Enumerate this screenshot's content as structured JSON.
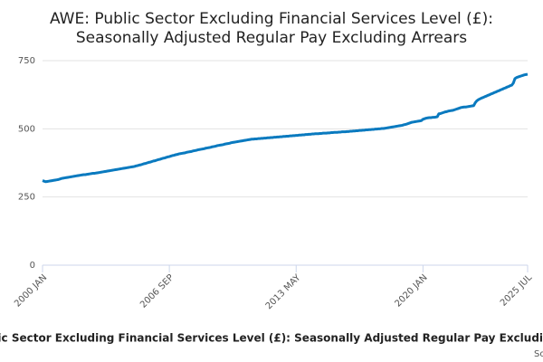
{
  "chart_data": {
    "type": "line",
    "title": [
      "AWE: Public Sector Excluding Financial Services Level (£):",
      "Seasonally Adjusted Regular Pay Excluding Arrears"
    ],
    "x_label": "AWE: Public Sector Excluding Financial Services Level (£): Seasonally Adjusted Regular Pay Excluding Arrears",
    "source": "Source:",
    "color": "#0a7abf",
    "grid": true,
    "ylim": [
      0,
      750
    ],
    "yticks": [
      0,
      250,
      500,
      750
    ],
    "categories": [
      "2000 JAN",
      null,
      null,
      null,
      null,
      null,
      null,
      null,
      null,
      null,
      null,
      null,
      null,
      null,
      null,
      null,
      null,
      null,
      null,
      null,
      null,
      null,
      null,
      null,
      null,
      null,
      null,
      null,
      null,
      null,
      null,
      null,
      null,
      null,
      null,
      null,
      null,
      null,
      null,
      null,
      null,
      null,
      null,
      null,
      null,
      null,
      null,
      null,
      null,
      null,
      null,
      null,
      null,
      null,
      null,
      null,
      null,
      null,
      null,
      null,
      null,
      null,
      null,
      null,
      null,
      null,
      null,
      null,
      null,
      null,
      null,
      null,
      null,
      null,
      null,
      null,
      null,
      null,
      null,
      null,
      "2006 SEP",
      null,
      null,
      null,
      null,
      null,
      null,
      null,
      null,
      null,
      null,
      null,
      null,
      null,
      null,
      null,
      null,
      null,
      null,
      null,
      null,
      null,
      null,
      null,
      null,
      null,
      null,
      null,
      null,
      null,
      null,
      null,
      null,
      null,
      null,
      null,
      null,
      null,
      null,
      null,
      null,
      null,
      null,
      null,
      null,
      null,
      null,
      null,
      null,
      null,
      null,
      null,
      null,
      null,
      null,
      null,
      null,
      null,
      null,
      null,
      null,
      null,
      null,
      null,
      null,
      null,
      null,
      null,
      null,
      null,
      null,
      null,
      null,
      null,
      null,
      null,
      null,
      null,
      null,
      null,
      "2013 MAY",
      null,
      null,
      null,
      null,
      null,
      null,
      null,
      null,
      null,
      null,
      null,
      null,
      null,
      null,
      null,
      null,
      null,
      null,
      null,
      null,
      null,
      null,
      null,
      null,
      null,
      null,
      null,
      null,
      null,
      null,
      null,
      null,
      null,
      null,
      null,
      null,
      null,
      null,
      null,
      null,
      null,
      null,
      null,
      null,
      null,
      null,
      null,
      null,
      null,
      null,
      null,
      null,
      null,
      null,
      null,
      null,
      null,
      null,
      null,
      null,
      null,
      null,
      null,
      null,
      null,
      null,
      null,
      null,
      null,
      null,
      null,
      null,
      null,
      null,
      null,
      null,
      null,
      null,
      null,
      "2020 JAN",
      null,
      null,
      null,
      null,
      null,
      null,
      null,
      null,
      null,
      null,
      null,
      null,
      null,
      null,
      null,
      null,
      null,
      null,
      null,
      null,
      null,
      null,
      null,
      null,
      null,
      null,
      null,
      null,
      null,
      null,
      null,
      null,
      null,
      null,
      null,
      null,
      null,
      null,
      null,
      null,
      null,
      null,
      null,
      null,
      null,
      null,
      null,
      null,
      null,
      null,
      null,
      null,
      null,
      null,
      null,
      null,
      null,
      null,
      null,
      null,
      null,
      null,
      null,
      null,
      null,
      "2025 JUL"
    ],
    "values": [
      310,
      308,
      306,
      307,
      308,
      309,
      310,
      311,
      312,
      313,
      314,
      316,
      318,
      319,
      320,
      321,
      322,
      323,
      324,
      325,
      326,
      327,
      328,
      329,
      330,
      331,
      332,
      332,
      333,
      334,
      335,
      336,
      337,
      337,
      338,
      339,
      340,
      341,
      342,
      343,
      344,
      345,
      346,
      347,
      348,
      349,
      350,
      351,
      352,
      353,
      354,
      355,
      356,
      357,
      358,
      359,
      360,
      361,
      362,
      364,
      365,
      367,
      368,
      370,
      372,
      373,
      375,
      377,
      378,
      380,
      382,
      383,
      385,
      387,
      388,
      390,
      392,
      393,
      395,
      397,
      398,
      400,
      402,
      403,
      405,
      406,
      408,
      409,
      410,
      411,
      412,
      414,
      415,
      416,
      417,
      419,
      420,
      421,
      423,
      424,
      425,
      426,
      427,
      429,
      430,
      431,
      432,
      434,
      435,
      436,
      438,
      439,
      440,
      441,
      442,
      444,
      445,
      446,
      447,
      449,
      450,
      451,
      452,
      453,
      454,
      455,
      456,
      457,
      458,
      459,
      460,
      461,
      462,
      462,
      463,
      463,
      464,
      464,
      465,
      465,
      466,
      466,
      467,
      467,
      468,
      468,
      469,
      469,
      470,
      470,
      471,
      471,
      472,
      472,
      473,
      473,
      474,
      474,
      475,
      475,
      476,
      476,
      477,
      477,
      478,
      478,
      479,
      479,
      480,
      480,
      481,
      481,
      482,
      482,
      482,
      483,
      483,
      484,
      484,
      484,
      485,
      485,
      486,
      486,
      487,
      487,
      487,
      488,
      488,
      489,
      489,
      489,
      490,
      490,
      491,
      491,
      492,
      492,
      493,
      493,
      494,
      494,
      495,
      495,
      496,
      496,
      497,
      497,
      498,
      498,
      499,
      499,
      500,
      500,
      501,
      501,
      502,
      503,
      504,
      505,
      506,
      507,
      508,
      509,
      510,
      511,
      512,
      513,
      515,
      516,
      518,
      520,
      522,
      524,
      525,
      526,
      527,
      528,
      529,
      530,
      535,
      537,
      539,
      540,
      541,
      541,
      542,
      542,
      543,
      544,
      555,
      556,
      558,
      560,
      562,
      563,
      565,
      566,
      567,
      568,
      570,
      572,
      574,
      576,
      578,
      579,
      580,
      580,
      581,
      582,
      583,
      584,
      585,
      596,
      603,
      607,
      610,
      613,
      615,
      618,
      620,
      623,
      625,
      628,
      630,
      633,
      635,
      638,
      640,
      643,
      645,
      648,
      650,
      653,
      655,
      658,
      660,
      668,
      684,
      688,
      690,
      692,
      694,
      696,
      698,
      699,
      700
    ]
  }
}
